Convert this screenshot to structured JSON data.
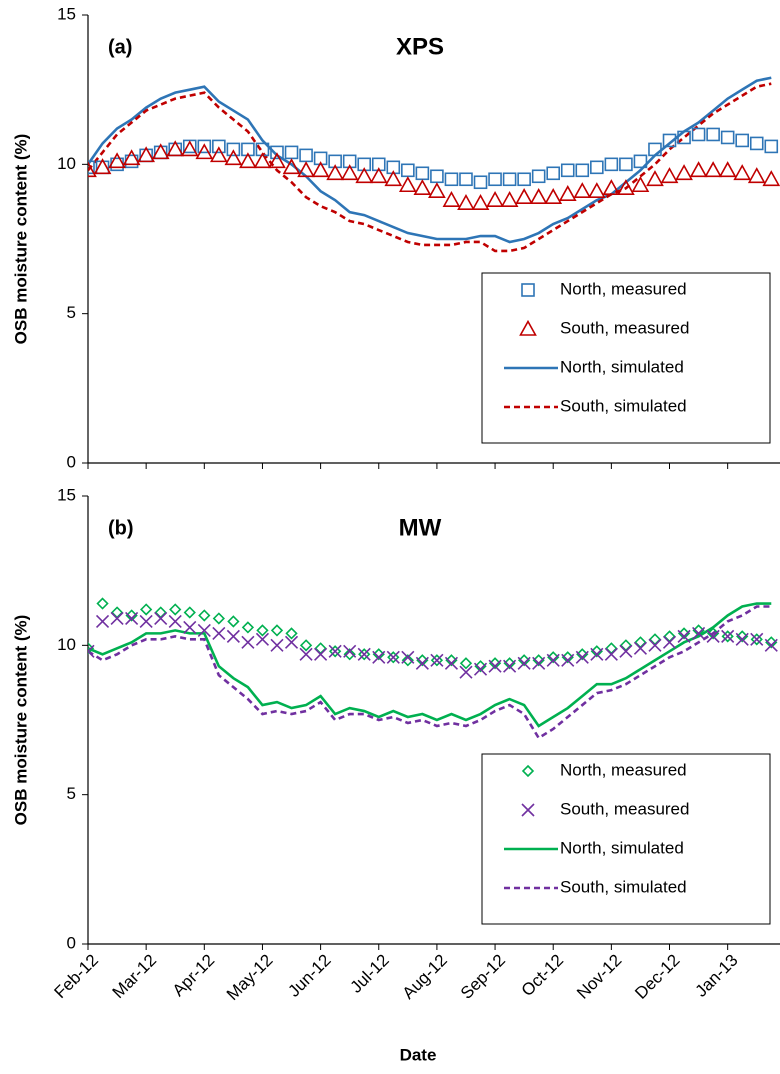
{
  "chart_data": [
    {
      "type": "line",
      "annotation": "(a)",
      "title": "XPS",
      "y_label": "OSB moisture content (%)",
      "x": [
        0,
        0.25,
        0.5,
        0.75,
        1,
        1.25,
        1.5,
        1.75,
        2,
        2.25,
        2.5,
        2.75,
        3,
        3.25,
        3.5,
        3.75,
        4,
        4.25,
        4.5,
        4.75,
        5,
        5.25,
        5.5,
        5.75,
        6,
        6.25,
        6.5,
        6.75,
        7,
        7.25,
        7.5,
        7.75,
        8,
        8.25,
        8.5,
        8.75,
        9,
        9.25,
        9.5,
        9.75,
        10,
        10.25,
        10.5,
        10.75,
        11,
        11.25,
        11.5,
        11.75
      ],
      "xlim": [
        0,
        11.9
      ],
      "xticks": [
        0,
        1,
        2,
        3,
        4,
        5,
        6,
        7,
        8,
        9,
        10,
        11
      ],
      "ylim": [
        0,
        15
      ],
      "yticks": [
        0,
        5,
        10,
        15
      ],
      "legend": "lower right",
      "series": [
        {
          "name": "North, measured",
          "color": "#2e75b6",
          "marker": "square",
          "values": [
            9.9,
            9.9,
            10.0,
            10.1,
            10.3,
            10.4,
            10.5,
            10.6,
            10.6,
            10.6,
            10.5,
            10.5,
            10.5,
            10.4,
            10.4,
            10.3,
            10.2,
            10.1,
            10.1,
            10.0,
            10.0,
            9.9,
            9.8,
            9.7,
            9.6,
            9.5,
            9.5,
            9.4,
            9.5,
            9.5,
            9.5,
            9.6,
            9.7,
            9.8,
            9.8,
            9.9,
            10.0,
            10.0,
            10.1,
            10.5,
            10.8,
            10.9,
            11.0,
            11.0,
            10.9,
            10.8,
            10.7,
            10.6
          ]
        },
        {
          "name": "South, measured",
          "color": "#c00000",
          "marker": "triangle",
          "values": [
            9.8,
            9.9,
            10.1,
            10.2,
            10.3,
            10.4,
            10.5,
            10.5,
            10.4,
            10.3,
            10.2,
            10.1,
            10.1,
            10.1,
            9.9,
            9.8,
            9.8,
            9.7,
            9.7,
            9.6,
            9.6,
            9.5,
            9.3,
            9.2,
            9.1,
            8.8,
            8.7,
            8.7,
            8.8,
            8.8,
            8.9,
            8.9,
            8.9,
            9.0,
            9.1,
            9.1,
            9.2,
            9.2,
            9.3,
            9.5,
            9.6,
            9.7,
            9.8,
            9.8,
            9.8,
            9.7,
            9.6,
            9.5
          ]
        },
        {
          "name": "North, simulated",
          "color": "#2e75b6",
          "linestyle": "solid",
          "values": [
            10.0,
            10.7,
            11.2,
            11.5,
            11.9,
            12.2,
            12.4,
            12.5,
            12.6,
            12.1,
            11.8,
            11.5,
            10.8,
            10.3,
            10.0,
            9.6,
            9.1,
            8.8,
            8.4,
            8.3,
            8.1,
            7.9,
            7.7,
            7.6,
            7.5,
            7.5,
            7.5,
            7.6,
            7.6,
            7.4,
            7.5,
            7.7,
            8.0,
            8.2,
            8.5,
            8.8,
            9.0,
            9.4,
            9.8,
            10.3,
            10.7,
            11.1,
            11.4,
            11.8,
            12.2,
            12.5,
            12.8,
            12.9
          ]
        },
        {
          "name": "South, simulated",
          "color": "#c00000",
          "linestyle": "dashed",
          "values": [
            9.8,
            10.4,
            11.0,
            11.4,
            11.8,
            12.0,
            12.2,
            12.3,
            12.4,
            11.9,
            11.5,
            11.1,
            10.4,
            9.8,
            9.4,
            8.9,
            8.6,
            8.4,
            8.1,
            8.0,
            7.8,
            7.6,
            7.4,
            7.3,
            7.3,
            7.3,
            7.4,
            7.4,
            7.1,
            7.1,
            7.2,
            7.5,
            7.8,
            8.1,
            8.4,
            8.7,
            9.0,
            9.2,
            9.6,
            10.0,
            10.5,
            10.9,
            11.3,
            11.7,
            12.0,
            12.3,
            12.6,
            12.7
          ]
        }
      ]
    },
    {
      "type": "line",
      "annotation": "(b)",
      "title": "MW",
      "y_label": "OSB moisture content (%)",
      "x_label": "Date",
      "x": [
        0,
        0.25,
        0.5,
        0.75,
        1,
        1.25,
        1.5,
        1.75,
        2,
        2.25,
        2.5,
        2.75,
        3,
        3.25,
        3.5,
        3.75,
        4,
        4.25,
        4.5,
        4.75,
        5,
        5.25,
        5.5,
        5.75,
        6,
        6.25,
        6.5,
        6.75,
        7,
        7.25,
        7.5,
        7.75,
        8,
        8.25,
        8.5,
        8.75,
        9,
        9.25,
        9.5,
        9.75,
        10,
        10.25,
        10.5,
        10.75,
        11,
        11.25,
        11.5,
        11.75
      ],
      "xlim": [
        0,
        11.9
      ],
      "xticks": [
        {
          "value": 0,
          "label": "Feb-12"
        },
        {
          "value": 1,
          "label": "Mar-12"
        },
        {
          "value": 2,
          "label": "Apr-12"
        },
        {
          "value": 3,
          "label": "May-12"
        },
        {
          "value": 4,
          "label": "Jun-12"
        },
        {
          "value": 5,
          "label": "Jul-12"
        },
        {
          "value": 6,
          "label": "Aug-12"
        },
        {
          "value": 7,
          "label": "Sep-12"
        },
        {
          "value": 8,
          "label": "Oct-12"
        },
        {
          "value": 9,
          "label": "Nov-12"
        },
        {
          "value": 10,
          "label": "Dec-12"
        },
        {
          "value": 11,
          "label": "Jan-13"
        }
      ],
      "ylim": [
        0,
        15
      ],
      "yticks": [
        0,
        5,
        10,
        15
      ],
      "legend": "lower right",
      "series": [
        {
          "name": "North, measured",
          "color": "#00b050",
          "marker": "diamond",
          "values": [
            9.9,
            11.4,
            11.1,
            11.0,
            11.2,
            11.1,
            11.2,
            11.1,
            11.0,
            10.9,
            10.8,
            10.6,
            10.5,
            10.5,
            10.4,
            10.0,
            9.9,
            9.8,
            9.7,
            9.7,
            9.7,
            9.6,
            9.5,
            9.5,
            9.5,
            9.5,
            9.4,
            9.3,
            9.4,
            9.4,
            9.5,
            9.5,
            9.6,
            9.6,
            9.7,
            9.8,
            9.9,
            10.0,
            10.1,
            10.2,
            10.3,
            10.4,
            10.5,
            10.4,
            10.3,
            10.3,
            10.2,
            10.1
          ]
        },
        {
          "name": "South, measured",
          "color": "#7030a0",
          "marker": "x",
          "values": [
            9.8,
            10.8,
            10.9,
            10.9,
            10.8,
            10.9,
            10.8,
            10.6,
            10.5,
            10.4,
            10.3,
            10.1,
            10.2,
            10.0,
            10.1,
            9.7,
            9.7,
            9.8,
            9.8,
            9.7,
            9.6,
            9.6,
            9.6,
            9.4,
            9.5,
            9.4,
            9.1,
            9.2,
            9.3,
            9.3,
            9.4,
            9.4,
            9.5,
            9.5,
            9.6,
            9.7,
            9.7,
            9.8,
            9.9,
            10.0,
            10.1,
            10.3,
            10.4,
            10.3,
            10.3,
            10.2,
            10.2,
            10.0
          ]
        },
        {
          "name": "North, simulated",
          "color": "#00b050",
          "linestyle": "solid",
          "values": [
            9.9,
            9.7,
            9.9,
            10.1,
            10.4,
            10.4,
            10.5,
            10.4,
            10.4,
            9.3,
            8.9,
            8.6,
            8.0,
            8.1,
            7.9,
            8.0,
            8.3,
            7.7,
            7.9,
            7.8,
            7.6,
            7.8,
            7.6,
            7.7,
            7.5,
            7.7,
            7.5,
            7.7,
            8.0,
            8.2,
            8.0,
            7.3,
            7.6,
            7.9,
            8.3,
            8.7,
            8.7,
            8.9,
            9.2,
            9.5,
            9.8,
            10.1,
            10.3,
            10.6,
            11.0,
            11.3,
            11.4,
            11.4
          ]
        },
        {
          "name": "South, simulated",
          "color": "#7030a0",
          "linestyle": "dashed",
          "values": [
            9.8,
            9.5,
            9.7,
            10.0,
            10.2,
            10.2,
            10.3,
            10.2,
            10.2,
            9.0,
            8.6,
            8.2,
            7.7,
            7.8,
            7.7,
            7.8,
            8.1,
            7.5,
            7.7,
            7.7,
            7.5,
            7.6,
            7.4,
            7.5,
            7.3,
            7.4,
            7.3,
            7.5,
            7.8,
            8.0,
            7.7,
            6.9,
            7.2,
            7.6,
            8.0,
            8.4,
            8.5,
            8.7,
            9.0,
            9.3,
            9.6,
            9.8,
            10.1,
            10.4,
            10.8,
            11.0,
            11.3,
            11.3
          ]
        }
      ]
    }
  ]
}
